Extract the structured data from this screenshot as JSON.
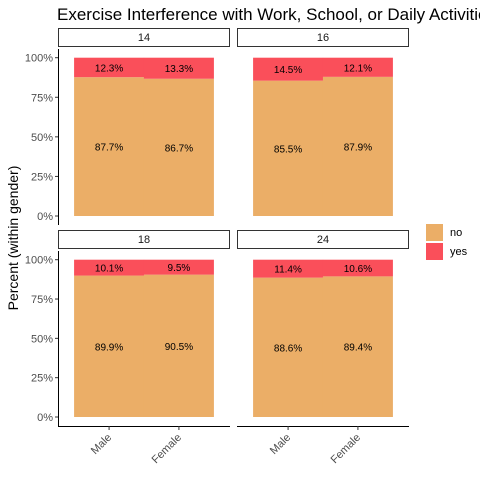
{
  "chart_data": {
    "type": "bar",
    "stacked": true,
    "title": "Exercise Interference with Work, School, or Daily Activities",
    "ylabel": "Percent (within gender)",
    "xlabel": "",
    "ylim": [
      0,
      100
    ],
    "yticks": [
      "0%",
      "25%",
      "50%",
      "75%",
      "100%"
    ],
    "categories": [
      "Male",
      "Female"
    ],
    "legend": [
      {
        "name": "no",
        "color": "#EBAE67"
      },
      {
        "name": "yes",
        "color": "#FA4F5A"
      }
    ],
    "legend_position": "right",
    "grid": false,
    "panels": [
      {
        "label": "14",
        "no": [
          87.7,
          86.7
        ],
        "yes": [
          12.3,
          13.3
        ],
        "no_labels": [
          "87.7%",
          "86.7%"
        ],
        "yes_labels": [
          "12.3%",
          "13.3%"
        ]
      },
      {
        "label": "16",
        "no": [
          85.5,
          87.9
        ],
        "yes": [
          14.5,
          12.1
        ],
        "no_labels": [
          "85.5%",
          "87.9%"
        ],
        "yes_labels": [
          "14.5%",
          "12.1%"
        ]
      },
      {
        "label": "18",
        "no": [
          89.9,
          90.5
        ],
        "yes": [
          10.1,
          9.5
        ],
        "no_labels": [
          "89.9%",
          "90.5%"
        ],
        "yes_labels": [
          "10.1%",
          "9.5%"
        ]
      },
      {
        "label": "24",
        "no": [
          88.6,
          89.4
        ],
        "yes": [
          11.4,
          10.6
        ],
        "no_labels": [
          "88.6%",
          "89.4%"
        ],
        "yes_labels": [
          "11.4%",
          "10.6%"
        ]
      }
    ]
  }
}
